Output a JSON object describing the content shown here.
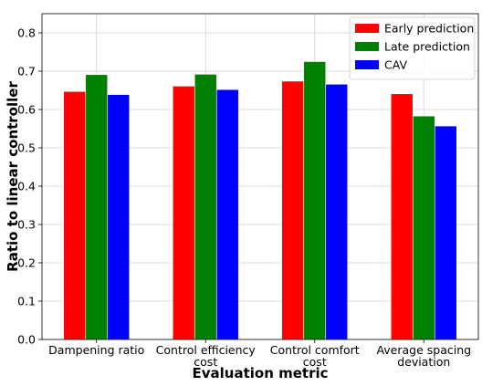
{
  "chart_data": {
    "type": "bar",
    "title": "",
    "xlabel": "Evaluation metric",
    "ylabel": "Ratio to linear controller",
    "ylim": [
      0,
      0.85
    ],
    "yticks": [
      "0.0",
      "0.1",
      "0.2",
      "0.3",
      "0.4",
      "0.5",
      "0.6",
      "0.7",
      "0.8"
    ],
    "grid": true,
    "legend_position": "top-right",
    "categories": [
      [
        "Dampening ratio"
      ],
      [
        "Control efficiency",
        "cost"
      ],
      [
        "Control comfort",
        "cost"
      ],
      [
        "Average spacing",
        "deviation"
      ]
    ],
    "series": [
      {
        "name": "Early prediction",
        "color": "#ff0000",
        "values": [
          0.647,
          0.661,
          0.674,
          0.641
        ]
      },
      {
        "name": "Late prediction",
        "color": "#008000",
        "values": [
          0.691,
          0.692,
          0.725,
          0.583
        ]
      },
      {
        "name": "CAV",
        "color": "#0000ff",
        "values": [
          0.639,
          0.652,
          0.666,
          0.557
        ]
      }
    ]
  }
}
